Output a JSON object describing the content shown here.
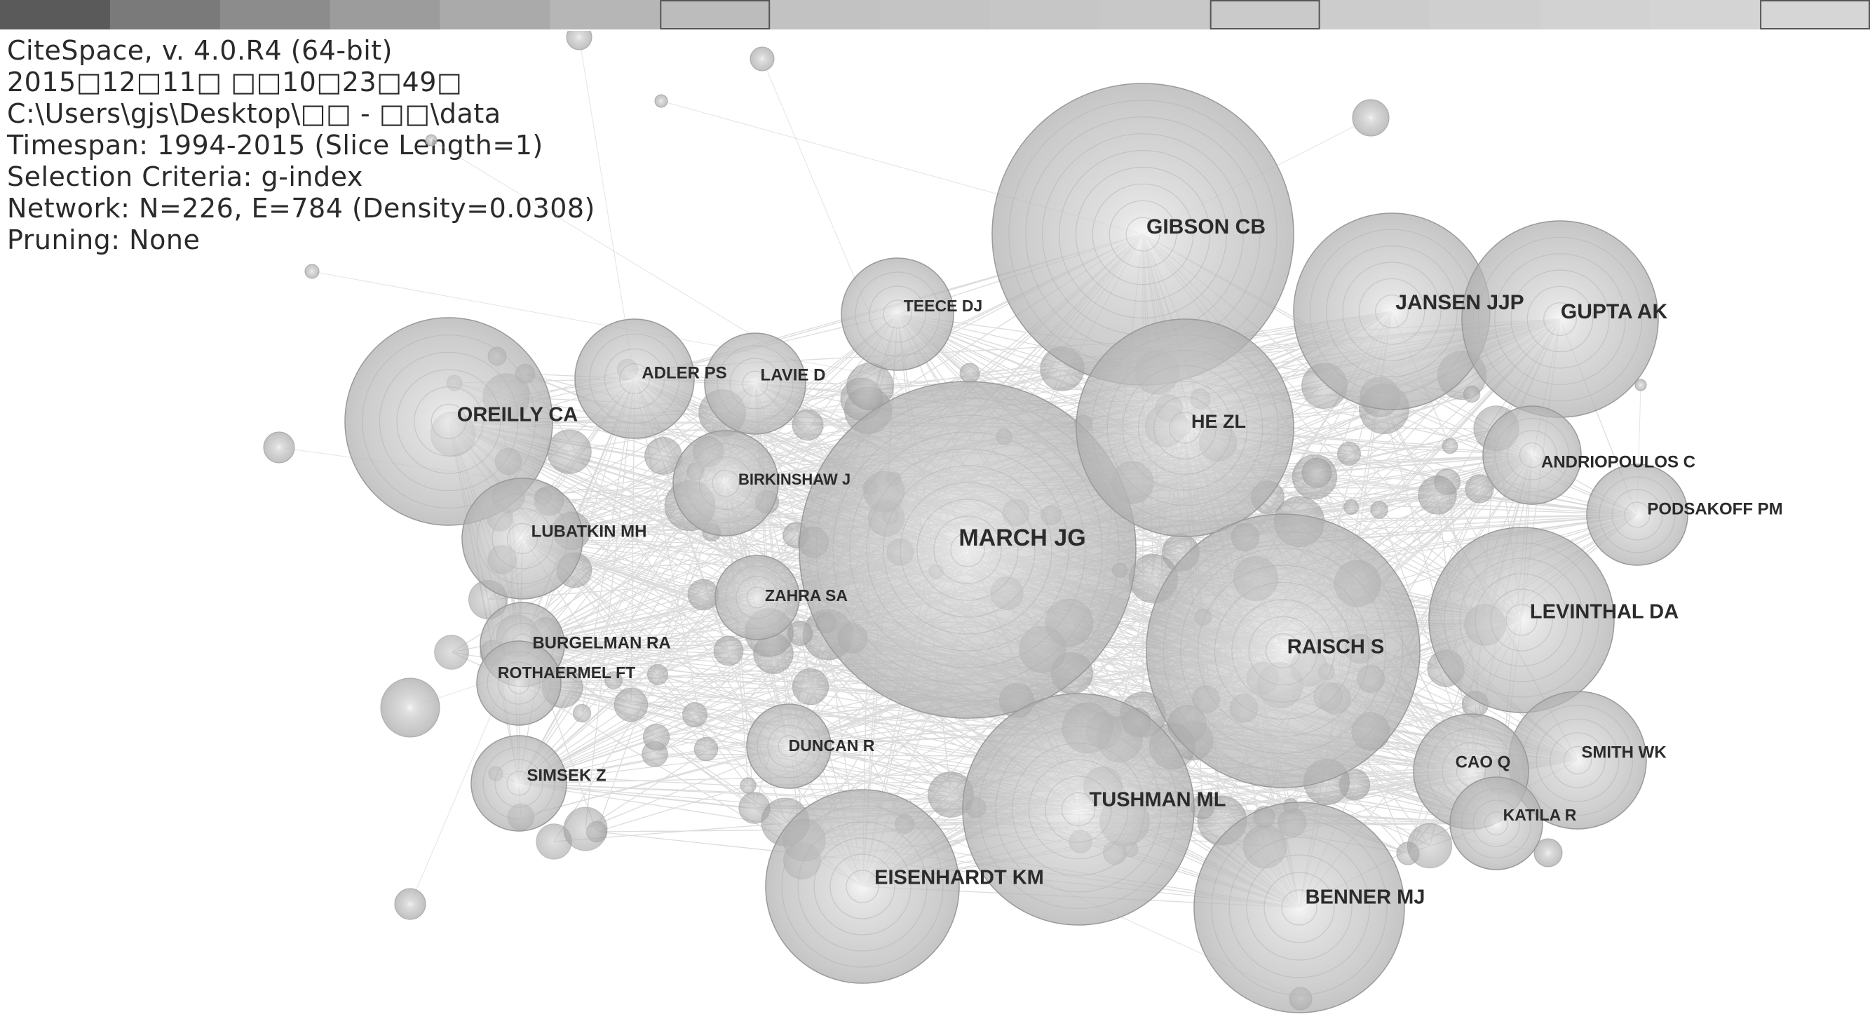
{
  "header": {
    "lines": [
      "CiteSpace, v. 4.0.R4 (64-bit)",
      "2015□12□11□ □□10□23□49□",
      "C:\\Users\\gjs\\Desktop\\□□ - □□\\data",
      "Timespan: 1994-2015 (Slice Length=1)",
      "Selection Criteria: g-index",
      "Network: N=226, E=784 (Density=0.0308)",
      "Pruning: None"
    ]
  },
  "timebar": {
    "colors": [
      "#5a5a5a",
      "#7a7a7a",
      "#8c8c8c",
      "#9c9c9c",
      "#aaaaaa",
      "#b6b6b6",
      "#bcbcbc",
      "#c2c2c2",
      "#c4c4c4",
      "#c6c6c6",
      "#c8c8c8",
      "#cacaca",
      "#cccccc",
      "#cfcfcf",
      "#d2d2d2",
      "#d4d4d4",
      "#d6d6d6"
    ],
    "outlined": [
      6,
      11,
      16
    ]
  },
  "nodes": [
    {
      "label": "GIBSON CB",
      "size": "xl",
      "labelled": true
    },
    {
      "label": "MARCH JG",
      "size": "xl",
      "labelled": true
    },
    {
      "label": "JANSEN JJP",
      "size": "l",
      "labelled": true
    },
    {
      "label": "GUPTA AK",
      "size": "l",
      "labelled": true
    },
    {
      "label": "TEECE DJ",
      "size": "m",
      "labelled": true
    },
    {
      "label": "ADLER PS",
      "size": "m",
      "labelled": true
    },
    {
      "label": "LAVIE D",
      "size": "m",
      "labelled": true
    },
    {
      "label": "OREILLY CA",
      "size": "l",
      "labelled": true
    },
    {
      "label": "HE ZL",
      "size": "l",
      "labelled": true
    },
    {
      "label": "ANDRIOPOULOS C",
      "size": "s",
      "labelled": true
    },
    {
      "label": "PODSAKOFF PM",
      "size": "s",
      "labelled": true
    },
    {
      "label": "BIRKINSHAW J",
      "size": "m",
      "labelled": true
    },
    {
      "label": "LUBATKIN MH",
      "size": "m",
      "labelled": true
    },
    {
      "label": "ZAHRA SA",
      "size": "m",
      "labelled": true
    },
    {
      "label": "LEVINTHAL DA",
      "size": "l",
      "labelled": true
    },
    {
      "label": "RAISCH S",
      "size": "xl",
      "labelled": true
    },
    {
      "label": "BURGELMAN RA",
      "size": "s",
      "labelled": true
    },
    {
      "label": "ROTHAERMEL FT",
      "size": "s",
      "labelled": true
    },
    {
      "label": "DUNCAN R",
      "size": "s",
      "labelled": true
    },
    {
      "label": "SIMSEK Z",
      "size": "m",
      "labelled": true
    },
    {
      "label": "SMITH WK",
      "size": "m",
      "labelled": true
    },
    {
      "label": "CAO Q",
      "size": "m",
      "labelled": true
    },
    {
      "label": "KATILA R",
      "size": "s",
      "labelled": true
    },
    {
      "label": "TUSHMAN ML",
      "size": "l",
      "labelled": true
    },
    {
      "label": "EISENHARDT KM",
      "size": "l",
      "labelled": true
    },
    {
      "label": "BENNER MJ",
      "size": "l",
      "labelled": true
    }
  ]
}
